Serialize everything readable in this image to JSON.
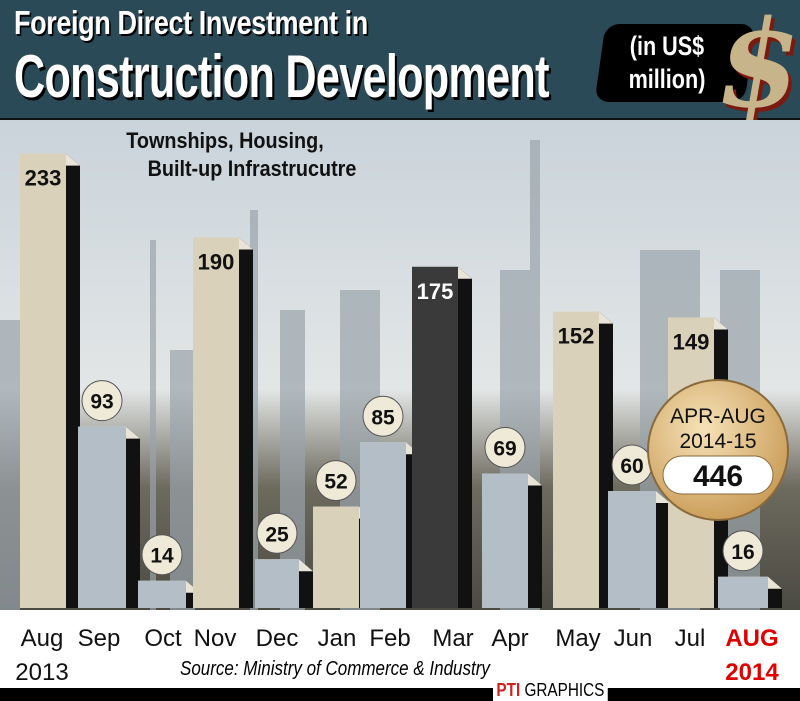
{
  "header": {
    "title_line1": "Foreign Direct Investment in",
    "title_line2": "Construction Development",
    "unit": "(in US$ million)",
    "unit_line1": "(in US$",
    "unit_line2": "million)"
  },
  "chart_data": {
    "type": "bar",
    "subtitle": "Townships, Housing, Built-up Infrastrucutre",
    "subtitle_line1": "Townships, Housing,",
    "subtitle_line2": "Built-up Infrastrucutre",
    "categories": [
      "Aug",
      "Sep",
      "Oct",
      "Nov",
      "Dec",
      "Jan",
      "Feb",
      "Mar",
      "Apr",
      "May",
      "Jun",
      "Jul",
      "AUG"
    ],
    "year_labels": {
      "first": "2013",
      "last": "2014"
    },
    "values": [
      233,
      93,
      14,
      190,
      25,
      52,
      85,
      175,
      69,
      152,
      60,
      149,
      16
    ],
    "ylim": [
      0,
      240
    ],
    "highlight_color": "#e00000",
    "colors": {
      "beige": "#d9d1b9",
      "blue_gray": "#b4bec6",
      "dark": "#3a3a3a"
    },
    "callout": {
      "line1": "APR-AUG",
      "line2": "2014-15",
      "value": "446"
    }
  },
  "footer": {
    "source": "Source: Ministry of Commerce & Industry",
    "credit_logo": "PTI",
    "credit": "GRAPHICS"
  }
}
